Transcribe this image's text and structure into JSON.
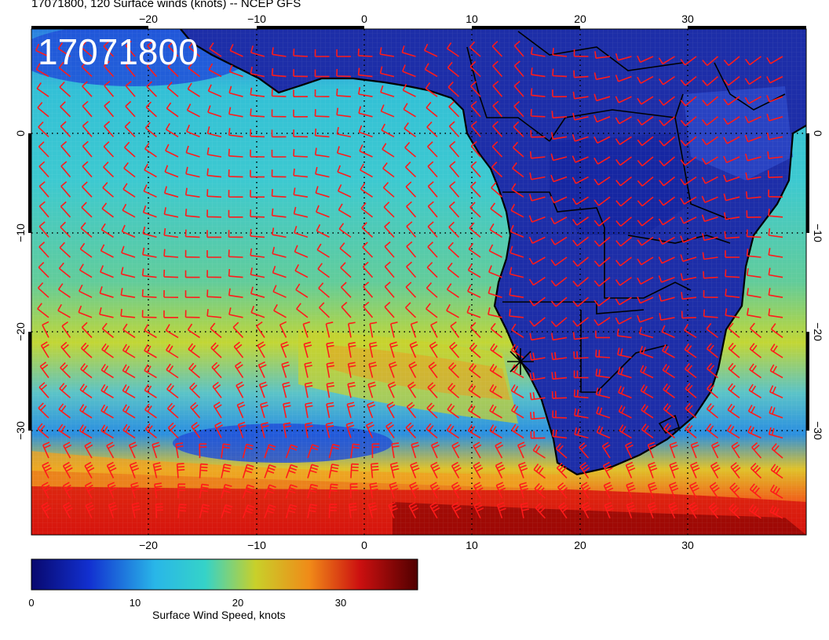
{
  "header": {
    "title": "17071800, 120 Surface winds (knots) -- NCEP GFS"
  },
  "map": {
    "stamp": "17071800",
    "lon_ticks": [
      "−20",
      "−10",
      "0",
      "10",
      "20",
      "30"
    ],
    "top_lon_ticks": [
      "−20",
      "−10",
      "0",
      "10",
      "20",
      "30"
    ],
    "lat_ticks": [
      "0",
      "−10",
      "−20",
      "−30"
    ],
    "marker": "storm-center-marker",
    "barb_color": "#ff1a1a",
    "land_color": "#1c2fb0",
    "coast_color": "#000000"
  },
  "colorbar": {
    "title": "Surface Wind Speed, knots",
    "ticks": [
      "0",
      "10",
      "20",
      "30"
    ],
    "colors": [
      "#0a0a8c",
      "#1f6be0",
      "#29c7d8",
      "#b8d63a",
      "#f0a020",
      "#d91a12",
      "#5a0000"
    ]
  }
}
